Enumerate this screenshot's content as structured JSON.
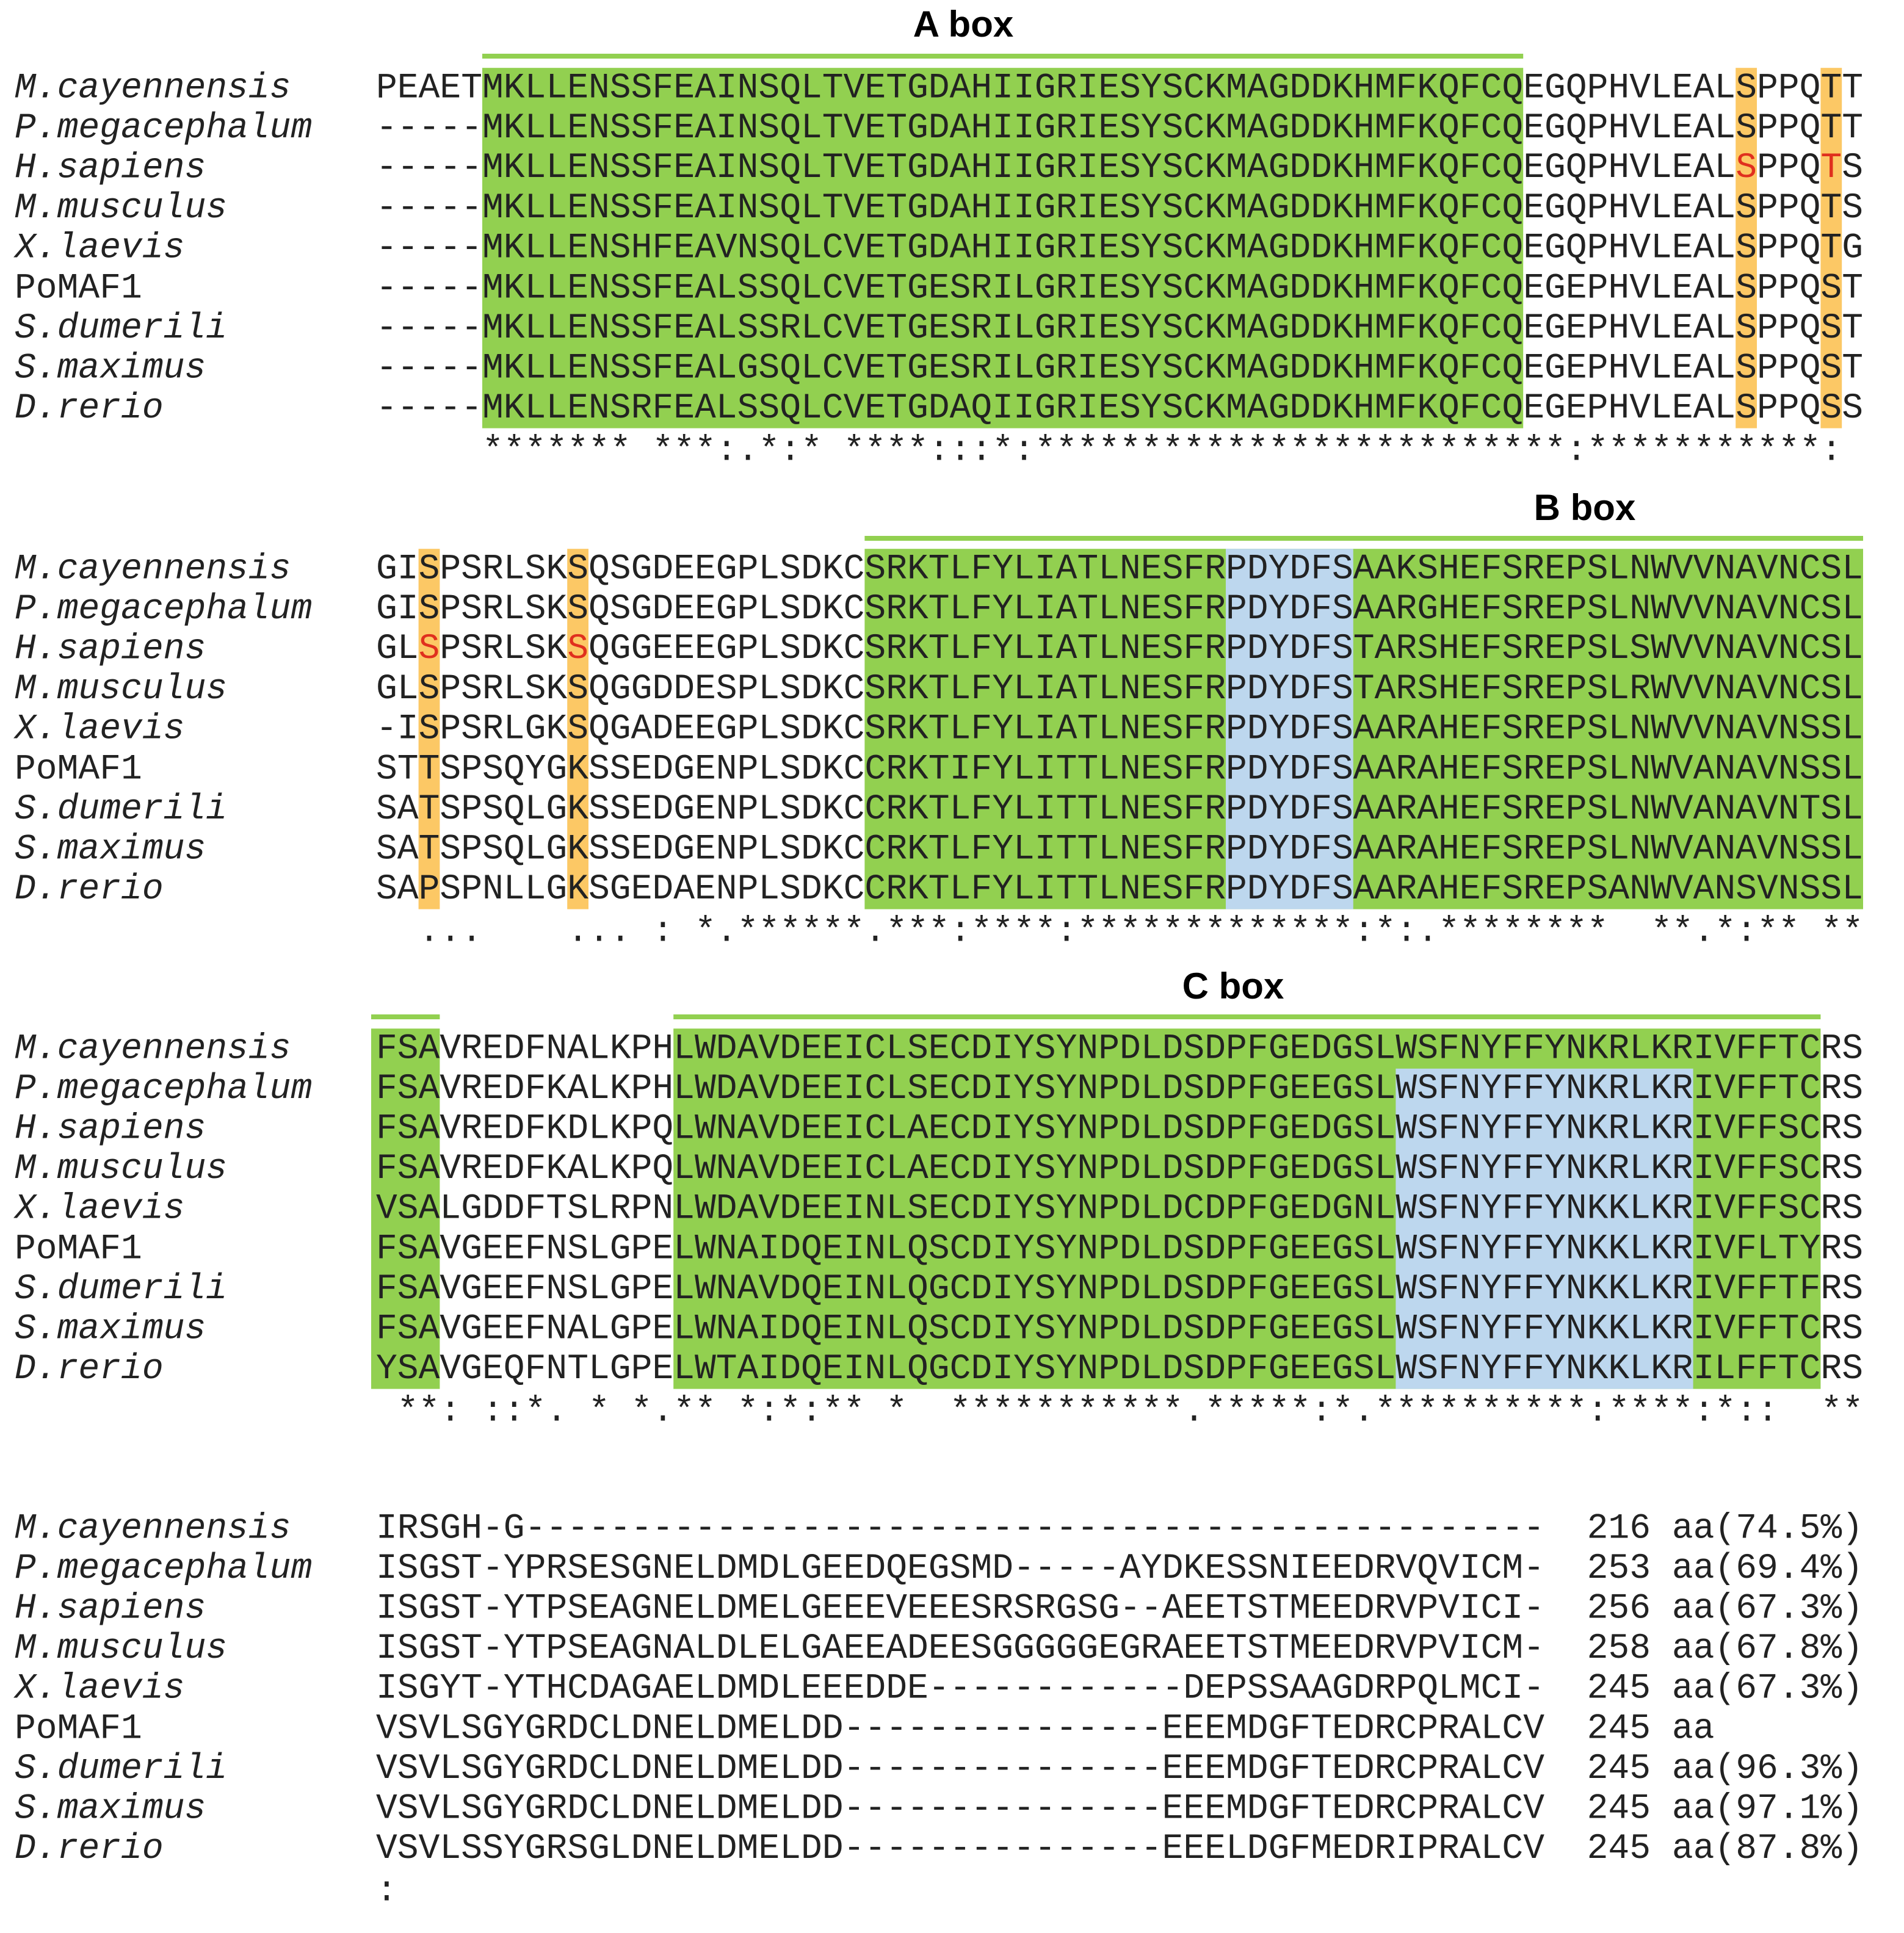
{
  "blocks": [
    {
      "title": "A box",
      "rows": [
        {
          "species": "M.cayennensis",
          "italic": true,
          "sequence": "PEAETMKLLENSSFEAINSQLTVETGDAHIIGRIESYSCKMAGDDKHMFKQFCQEGQPHVLEALSPPQTT"
        },
        {
          "species": "P.megacephalum",
          "italic": true,
          "sequence": "-----MKLLENSSFEAINSQLTVETGDAHIIGRIESYSCKMAGDDKHMFKQFCQEGQPHVLEALSPPQTT"
        },
        {
          "species": "H.sapiens",
          "italic": true,
          "sequence": "-----MKLLENSSFEAINSQLTVETGDAHIIGRIESYSCKMAGDDKHMFKQFCQEGQPHVLEALSPPQTS"
        },
        {
          "species": "M.musculus",
          "italic": true,
          "sequence": "-----MKLLENSSFEAINSQLTVETGDAHIIGRIESYSCKMAGDDKHMFKQFCQEGQPHVLEALSPPQTS"
        },
        {
          "species": "X.laevis",
          "italic": true,
          "sequence": "-----MKLLENSHFEAVNSQLCVETGDAHIIGRIESYSCKMAGDDKHMFKQFCQEGQPHVLEALSPPQTG"
        },
        {
          "species": "PoMAF1",
          "italic": false,
          "sequence": "-----MKLLENSSFEALSSQLCVETGESRILGRIESYSCKMAGDDKHMFKQFCQEGEPHVLEALSPPQST"
        },
        {
          "species": "S.dumerili",
          "italic": true,
          "sequence": "-----MKLLENSSFEALSSRLCVETGESRILGRIESYSCKMAGDDKHMFKQFCQEGEPHVLEALSPPQST"
        },
        {
          "species": "S.maximus",
          "italic": true,
          "sequence": "-----MKLLENSSFEALGSQLCVETGESRILGRIESYSCKMAGDDKHMFKQFCQEGEPHVLEALSPPQST"
        },
        {
          "species": "D.rerio",
          "italic": true,
          "sequence": "-----MKLLENSRFEALSSQLCVETGDAQIIGRIESYSCKMAGDDKHMFKQFCQEGEPHVLEALSPPQSS"
        }
      ],
      "consensus": "     ******* ***:.*:* ****:::*:*************************:***********:"
    },
    {
      "title": "B box",
      "rows": [
        {
          "species": "M.cayennensis",
          "italic": true,
          "sequence": "GISPSRLSKSQSGDEEGPLSDKCSRKTLFYLIATLNESFRPDYDFSAAKSHEFSREPSLNWVVNAVNCSL"
        },
        {
          "species": "P.megacephalum",
          "italic": true,
          "sequence": "GISPSRLSKSQSGDEEGPLSDKCSRKTLFYLIATLNESFRPDYDFSAARGHEFSREPSLNWVVNAVNCSL"
        },
        {
          "species": "H.sapiens",
          "italic": true,
          "sequence": "GLSPSRLSKSQGGEEEGPLSDKCSRKTLFYLIATLNESFRPDYDFSTARSHEFSREPSLSWVVNAVNCSL"
        },
        {
          "species": "M.musculus",
          "italic": true,
          "sequence": "GLSPSRLSKSQGGDDESPLSDKCSRKTLFYLIATLNESFRPDYDFSTARSHEFSREPSLRWVVNAVNCSL"
        },
        {
          "species": "X.laevis",
          "italic": true,
          "sequence": "-ISPSRLGKSQGADEEGPLSDKCSRKTLFYLIATLNESFRPDYDFSAARAHEFSREPSLNWVVNAVNSSL"
        },
        {
          "species": "PoMAF1",
          "italic": false,
          "sequence": "STTSPSQYGKSSEDGENPLSDKCCRKTIFYLITTLNESFRPDYDFSAARAHEFSREPSLNWVANAVNSSL"
        },
        {
          "species": "S.dumerili",
          "italic": true,
          "sequence": "SATSPSQLGKSSEDGENPLSDKCCRKTLFYLITTLNESFRPDYDFSAARAHEFSREPSLNWVANAVNTSL"
        },
        {
          "species": "S.maximus",
          "italic": true,
          "sequence": "SATSPSQLGKSSEDGENPLSDKCCRKTLFYLITTLNESFRPDYDFSAARAHEFSREPSLNWVANAVNSSL"
        },
        {
          "species": "D.rerio",
          "italic": true,
          "sequence": "SAPSPNLLGKSGEDAENPLSDKCCRKTLFYLITTLNESFRPDYDFSAARAHEFSREPSANWVANSVNSSL"
        }
      ],
      "consensus": "  ...    ... : *.******.***:****:*************:*:.********  **.*:** **"
    },
    {
      "title": "C box",
      "rows": [
        {
          "species": "M.cayennensis",
          "italic": true,
          "sequence": "FSAVREDFNALKPHLWDAVDEEICLSECDIYSYNPDLDSDPFGEDGSLWSFNYFFYNKRLKRIVFFTCRS"
        },
        {
          "species": "P.megacephalum",
          "italic": true,
          "sequence": "FSAVREDFKALKPHLWDAVDEEICLSECDIYSYNPDLDSDPFGEEGSLWSFNYFFYNKRLKRIVFFTCRS"
        },
        {
          "species": "H.sapiens",
          "italic": true,
          "sequence": "FSAVREDFKDLKPQLWNAVDEEICLAECDIYSYNPDLDSDPFGEDGSLWSFNYFFYNKRLKRIVFFSCRS"
        },
        {
          "species": "M.musculus",
          "italic": true,
          "sequence": "FSAVREDFKALKPQLWNAVDEEICLAECDIYSYNPDLDSDPFGEDGSLWSFNYFFYNKRLKRIVFFSCRS"
        },
        {
          "species": "X.laevis",
          "italic": true,
          "sequence": "VSALGDDFTSLRPNLWDAVDEEINLSECDIYSYNPDLDCDPFGEDGNLWSFNYFFYNKKLKRIVFFSCRS"
        },
        {
          "species": "PoMAF1",
          "italic": false,
          "sequence": "FSAVGEEFNSLGPELWNAIDQEINLQSCDIYSYNPDLDSDPFGEEGSLWSFNYFFYNKKLKRIVFLTYRS"
        },
        {
          "species": "S.dumerili",
          "italic": true,
          "sequence": "FSAVGEEFNSLGPELWNAVDQEINLQGCDIYSYNPDLDSDPFGEEGSLWSFNYFFYNKKLKRIVFFTFRS"
        },
        {
          "species": "S.maximus",
          "italic": true,
          "sequence": "FSAVGEEFNALGPELWNAIDQEINLQSCDIYSYNPDLDSDPFGEEGSLWSFNYFFYNKKLKRIVFFTCRS"
        },
        {
          "species": "D.rerio",
          "italic": true,
          "sequence": "YSAVGEQFNTLGPELWTAIDQEINLQGCDIYSYNPDLDSDPFGEEGSLWSFNYFFYNKKLKRILFFTCRS"
        }
      ],
      "consensus": " **: ::*. * *.** *:*:** *  ***********.*****:*.**********:****:*::  **"
    },
    {
      "rows": [
        {
          "species": "M.cayennensis",
          "italic": true,
          "sequence": "IRSGH-G------------------------------------------------",
          "length": "216 aa",
          "identity": "(74.5%)"
        },
        {
          "species": "P.megacephalum",
          "italic": true,
          "sequence": "ISGST-YPRSESGNELDMDLGEEDQEGSMD-----AYDKESSNIEEDRVQVICM-",
          "length": "253 aa",
          "identity": "(69.4%)"
        },
        {
          "species": "H.sapiens",
          "italic": true,
          "sequence": "ISGST-YTPSEAGNELDMELGEEEVEEESRSRGSG--AEETSTMEEDRVPVICI-",
          "length": "256 aa",
          "identity": "(67.3%)"
        },
        {
          "species": "M.musculus",
          "italic": true,
          "sequence": "ISGST-YTPSEAGNALDLELGAEEADEESGGGGGEGRAEETSTMEEDRVPVICM-",
          "length": "258 aa",
          "identity": "(67.8%)"
        },
        {
          "species": "X.laevis",
          "italic": true,
          "sequence": "ISGYT-YTHCDAGAELDMDLEEEDDE------------DEPSSAAGDRPQLMCI-",
          "length": "245 aa",
          "identity": "(67.3%)"
        },
        {
          "species": "PoMAF1",
          "italic": false,
          "sequence": "VSVLSGYGRDCLDNELDMELDD---------------EEEMDGFTEDRCPRALCV",
          "length": "245 aa",
          "identity": null
        },
        {
          "species": "S.dumerili",
          "italic": true,
          "sequence": "VSVLSGYGRDCLDNELDMELDD---------------EEEMDGFTEDRCPRALCV",
          "length": "245 aa",
          "identity": "(96.3%)"
        },
        {
          "species": "S.maximus",
          "italic": true,
          "sequence": "VSVLSGYGRDCLDNELDMELDD---------------EEEMDGFTEDRCPRALCV",
          "length": "245 aa",
          "identity": "(97.1%)"
        },
        {
          "species": "D.rerio",
          "italic": true,
          "sequence": "VSVLSSYGRSGLDNELDMELDD---------------EEELDGFMEDRIPRALCV",
          "length": "245 aa",
          "identity": "(87.8%)"
        }
      ],
      "consensus": ":"
    }
  ]
}
